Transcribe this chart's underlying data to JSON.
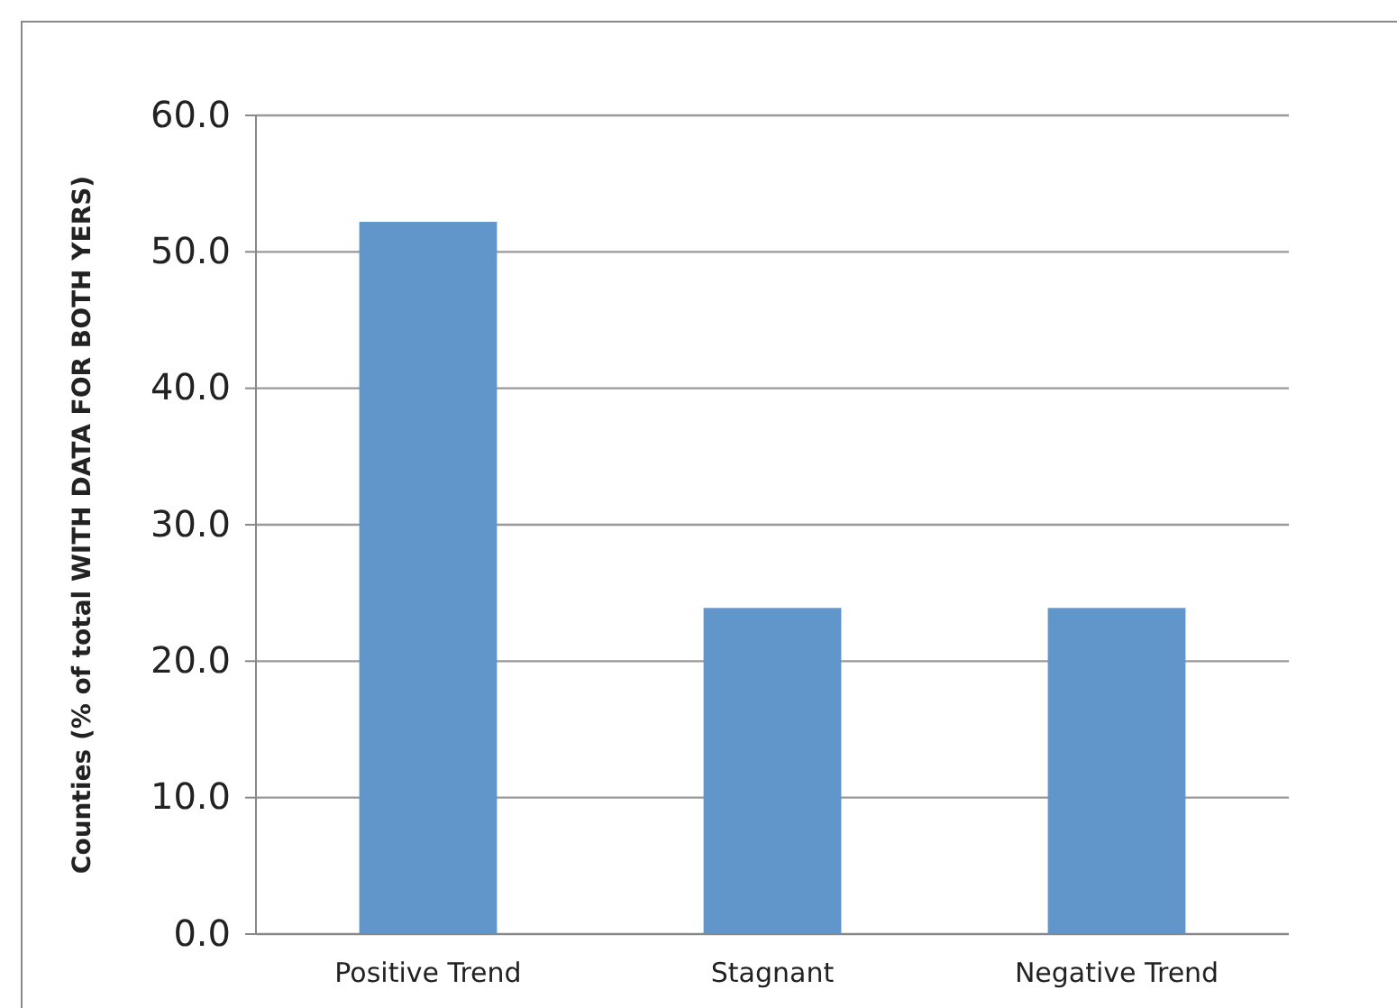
{
  "chart_data": {
    "type": "bar",
    "ylabel": "Counties (% of total WITH DATA FOR BOTH YERS)",
    "categories": [
      "Positive Trend",
      "Stagnant",
      "Negative Trend"
    ],
    "values": [
      52.2,
      23.9,
      23.9
    ],
    "color": "#6096c9",
    "ylim": [
      0,
      60
    ],
    "yticks": [
      {
        "value": 0,
        "label": "0.0"
      },
      {
        "value": 10,
        "label": "10.0"
      },
      {
        "value": 20,
        "label": "20.0"
      },
      {
        "value": 30,
        "label": "30.0"
      },
      {
        "value": 40,
        "label": "40.0"
      },
      {
        "value": 50,
        "label": "50.0"
      },
      {
        "value": 60,
        "label": "60.0"
      }
    ],
    "grid": "y"
  }
}
